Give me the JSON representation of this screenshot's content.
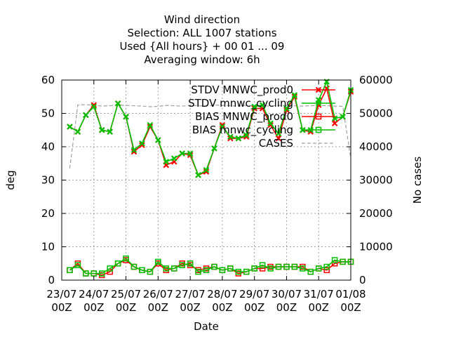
{
  "chart_data": {
    "type": "line",
    "title_lines": [
      "Wind direction",
      "Selection: ALL   1007 stations",
      "Used {All hours} + 00 01 ... 09",
      "Averaging window:  6h"
    ],
    "xlabel": "Date",
    "ylabel": "deg",
    "y2label": "No cases",
    "ylim": [
      0,
      60
    ],
    "y2lim": [
      0,
      60000
    ],
    "yticks": [
      0,
      10,
      20,
      30,
      40,
      50,
      60
    ],
    "y2ticks": [
      0,
      10000,
      20000,
      30000,
      40000,
      50000,
      60000
    ],
    "x_tick_labels": [
      [
        "23/07",
        "00Z"
      ],
      [
        "24/07",
        "00Z"
      ],
      [
        "25/07",
        "00Z"
      ],
      [
        "26/07",
        "00Z"
      ],
      [
        "27/07",
        "00Z"
      ],
      [
        "28/07",
        "00Z"
      ],
      [
        "29/07",
        "00Z"
      ],
      [
        "30/07",
        "00Z"
      ],
      [
        "31/07",
        "00Z"
      ],
      [
        "01/08",
        "00Z"
      ]
    ],
    "x_days": 9,
    "x_step_hours": 6,
    "x_first_hour": 6,
    "grid": true,
    "legend_position": "top-right",
    "series": [
      {
        "name": "STDV MNWC_prod0",
        "color": "#ff0000",
        "marker": "x",
        "axis": "y",
        "values": [
          46,
          44.5,
          49.5,
          52.5,
          45,
          44.5,
          53,
          49,
          38.5,
          40.5,
          46,
          42,
          34.5,
          35.5,
          38,
          37.5,
          31.5,
          32.5,
          39.5,
          46.5,
          42.5,
          42.5,
          43,
          51.5,
          51.5,
          46.5,
          42.5,
          51,
          55,
          45,
          44.5,
          52.5,
          57.5,
          47,
          49,
          56.5
        ]
      },
      {
        "name": "STDV mnwc_cycling",
        "color": "#00c000",
        "marker": "x",
        "axis": "y",
        "values": [
          46,
          44.5,
          49.5,
          52,
          45,
          44.5,
          53,
          49,
          39,
          41,
          46.5,
          42,
          35.5,
          36.5,
          38,
          38,
          31.5,
          33,
          39.5,
          46,
          43,
          42.5,
          43.5,
          52,
          52.5,
          47,
          44,
          51.5,
          55.5,
          45,
          45,
          54,
          59.5,
          48.5,
          49,
          57
        ]
      },
      {
        "name": "BIAS MNWC_prod0",
        "color": "#ff0000",
        "marker": "square",
        "axis": "y",
        "values": [
          3,
          5,
          2,
          2,
          1.5,
          2.5,
          5,
          6,
          4,
          3,
          2.5,
          5,
          3,
          3.5,
          5,
          4.5,
          3,
          3.5,
          4,
          3,
          3.5,
          2,
          2.5,
          3.5,
          3.5,
          4,
          4,
          4,
          4,
          4,
          2.5,
          3.5,
          3,
          5,
          5.5,
          5.5
        ]
      },
      {
        "name": "BIAS mnwc_cycling",
        "color": "#00c000",
        "marker": "square",
        "axis": "y",
        "values": [
          3,
          4.5,
          2,
          2,
          2,
          3.5,
          5,
          6.5,
          4,
          3,
          2.5,
          5.5,
          3.5,
          3.5,
          4.5,
          5,
          2.5,
          3,
          4,
          3,
          3.5,
          2.5,
          2.5,
          3.5,
          4.5,
          3.5,
          4,
          4,
          4,
          3.5,
          2.5,
          3.5,
          4,
          6,
          5.5,
          5.5
        ]
      },
      {
        "name": "CASES",
        "color": "#a0a0a0",
        "marker": "none",
        "dashed": true,
        "axis": "y2",
        "values": [
          33500,
          52500,
          52600,
          52500,
          52200,
          52300,
          52500,
          52400,
          52300,
          52200,
          52000,
          52100,
          52400,
          52300,
          52200,
          52400,
          52300,
          52200,
          52500,
          52400,
          52300,
          52200,
          52400,
          52300,
          52300,
          52200,
          52400,
          52300,
          52300,
          52200,
          52300,
          52400,
          52300,
          52200,
          52100,
          36500
        ]
      }
    ]
  }
}
